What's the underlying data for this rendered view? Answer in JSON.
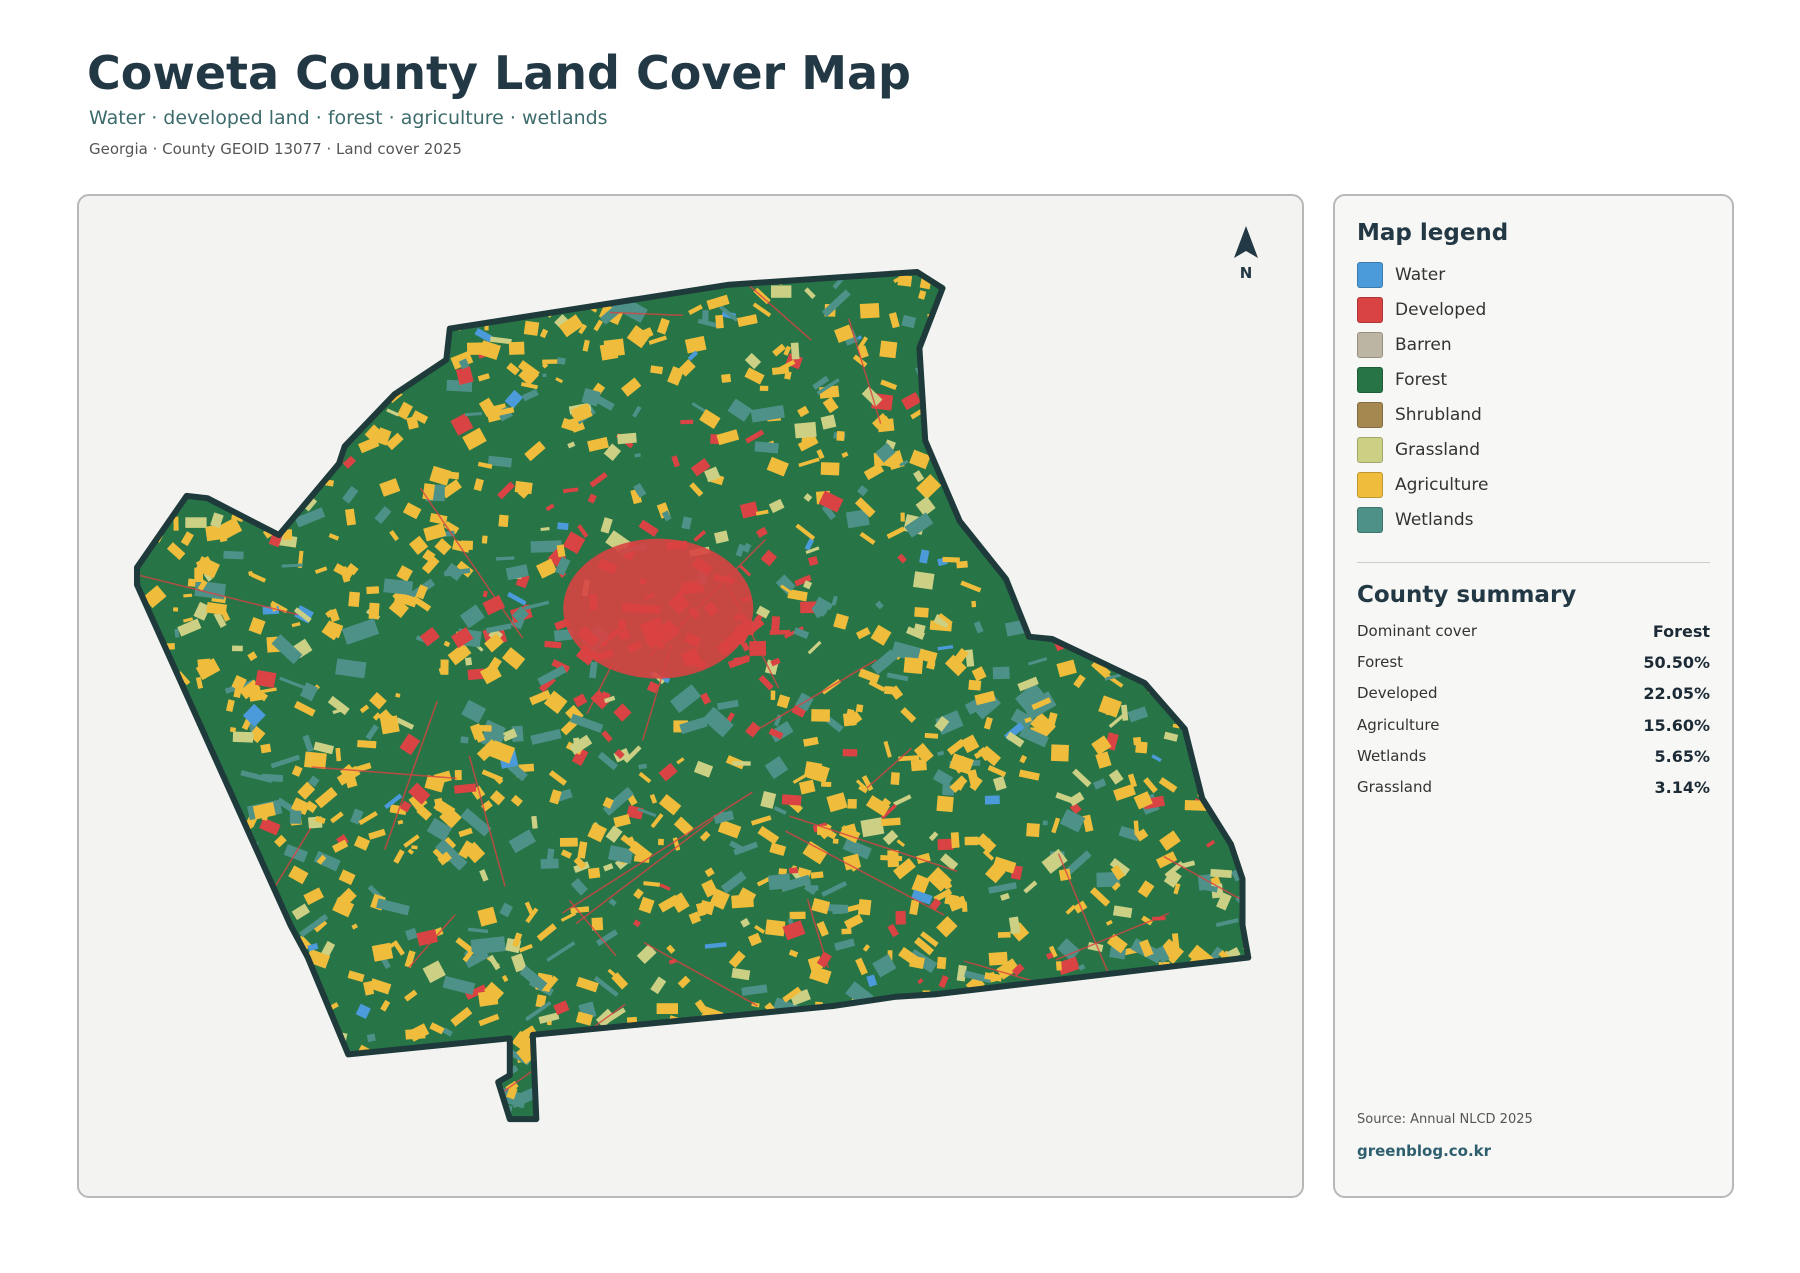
{
  "header": {
    "title": "Coweta County Land Cover Map",
    "subtitle": "Water · developed land · forest · agriculture · wetlands",
    "meta": "Georgia · County GEOID 13077 · Land cover 2025"
  },
  "map": {
    "north": "N"
  },
  "legend": {
    "title": "Map legend",
    "items": [
      {
        "label": "Water",
        "color": "#4b9ad9"
      },
      {
        "label": "Developed",
        "color": "#d94343"
      },
      {
        "label": "Barren",
        "color": "#bdb5a3"
      },
      {
        "label": "Forest",
        "color": "#277446"
      },
      {
        "label": "Shrubland",
        "color": "#a4884f"
      },
      {
        "label": "Grassland",
        "color": "#ccd084"
      },
      {
        "label": "Agriculture",
        "color": "#efbc3c"
      },
      {
        "label": "Wetlands",
        "color": "#4e9189"
      }
    ]
  },
  "summary": {
    "title": "County summary",
    "rows": [
      [
        "Dominant cover",
        "Forest"
      ],
      [
        "Forest",
        "50.50%"
      ],
      [
        "Developed",
        "22.05%"
      ],
      [
        "Agriculture",
        "15.60%"
      ],
      [
        "Wetlands",
        "5.65%"
      ],
      [
        "Grassland",
        "3.14%"
      ]
    ]
  },
  "footer": {
    "source": "Source: Annual NLCD 2025",
    "site": "greenblog.co.kr"
  }
}
